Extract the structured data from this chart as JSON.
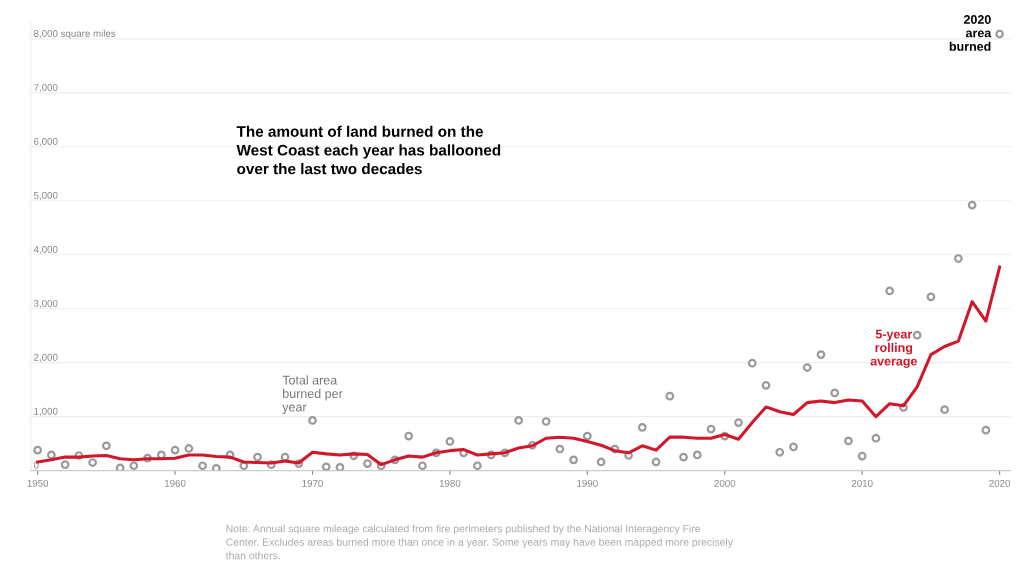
{
  "chart_data": {
    "type": "scatter",
    "title": "The amount of land burned on the\nWest Coast each year has ballooned\nover the last two decades",
    "x": [
      1950,
      1951,
      1952,
      1953,
      1954,
      1955,
      1956,
      1957,
      1958,
      1959,
      1960,
      1961,
      1962,
      1963,
      1964,
      1965,
      1966,
      1967,
      1968,
      1969,
      1970,
      1971,
      1972,
      1973,
      1974,
      1975,
      1976,
      1977,
      1978,
      1979,
      1980,
      1981,
      1982,
      1983,
      1984,
      1985,
      1986,
      1987,
      1988,
      1989,
      1990,
      1991,
      1992,
      1993,
      1994,
      1995,
      1996,
      1997,
      1998,
      1999,
      2000,
      2001,
      2002,
      2003,
      2004,
      2005,
      2006,
      2007,
      2008,
      2009,
      2010,
      2011,
      2012,
      2013,
      2014,
      2015,
      2016,
      2017,
      2018,
      2019,
      2020
    ],
    "series": [
      {
        "name": "Total area\nburned per\nyear",
        "color": "#9a9a9a",
        "marker": "circle",
        "values": [
          380,
          290,
          110,
          280,
          150,
          460,
          50,
          90,
          230,
          290,
          380,
          410,
          90,
          40,
          290,
          90,
          250,
          110,
          250,
          130,
          930,
          70,
          60,
          275,
          130,
          90,
          200,
          640,
          90,
          330,
          540,
          330,
          90,
          290,
          330,
          930,
          470,
          910,
          400,
          200,
          640,
          160,
          400,
          280,
          800,
          160,
          1380,
          250,
          290,
          770,
          640,
          890,
          1990,
          1580,
          340,
          440,
          1910,
          2150,
          1440,
          550,
          270,
          600,
          3330,
          1170,
          2510,
          3220,
          1130,
          3930,
          4920,
          750,
          8090
        ]
      },
      {
        "name": "5-year\nrolling\naverage",
        "type": "line",
        "color": "#d0182a",
        "line_style": "solid",
        "values": [
          160,
          200,
          250,
          250,
          270,
          280,
          220,
          200,
          220,
          220,
          230,
          290,
          290,
          260,
          250,
          160,
          150,
          140,
          180,
          140,
          340,
          310,
          290,
          310,
          300,
          110,
          200,
          270,
          250,
          330,
          370,
          390,
          290,
          310,
          330,
          420,
          460,
          600,
          620,
          600,
          540,
          470,
          370,
          330,
          460,
          380,
          620,
          620,
          600,
          600,
          670,
          580,
          890,
          1180,
          1090,
          1040,
          1260,
          1290,
          1260,
          1310,
          1290,
          1000,
          1240,
          1200,
          1550,
          2150,
          2300,
          2400,
          3130,
          2770,
          3770
        ]
      }
    ],
    "xlim": [
      1949.5,
      2020.8
    ],
    "xticks": [
      1950,
      1960,
      1970,
      1980,
      1990,
      2000,
      2010,
      2020
    ],
    "ylim": [
      0,
      8300
    ],
    "yticks": [
      0,
      {
        "value": 1000,
        "label": "1,000"
      },
      {
        "value": 2000,
        "label": "2,000"
      },
      {
        "value": 3000,
        "label": "3,000"
      },
      {
        "value": 4000,
        "label": "4,000"
      },
      {
        "value": 5000,
        "label": "5,000"
      },
      {
        "value": 6000,
        "label": "6,000"
      },
      {
        "value": 7000,
        "label": "7,000"
      },
      {
        "value": 8000,
        "label": "8,000 square miles"
      }
    ],
    "grid": "y",
    "legend": false,
    "annotations": [
      {
        "text": "2020\narea\nburned",
        "x": 2020,
        "y": 8090
      },
      "Note: Annual square mileage calculated from fire perimeters published by the National Interagency Fire\nCenter. Excludes areas burned more than once in a year. Some years may have been mapped more precisely\nthan others."
    ]
  }
}
